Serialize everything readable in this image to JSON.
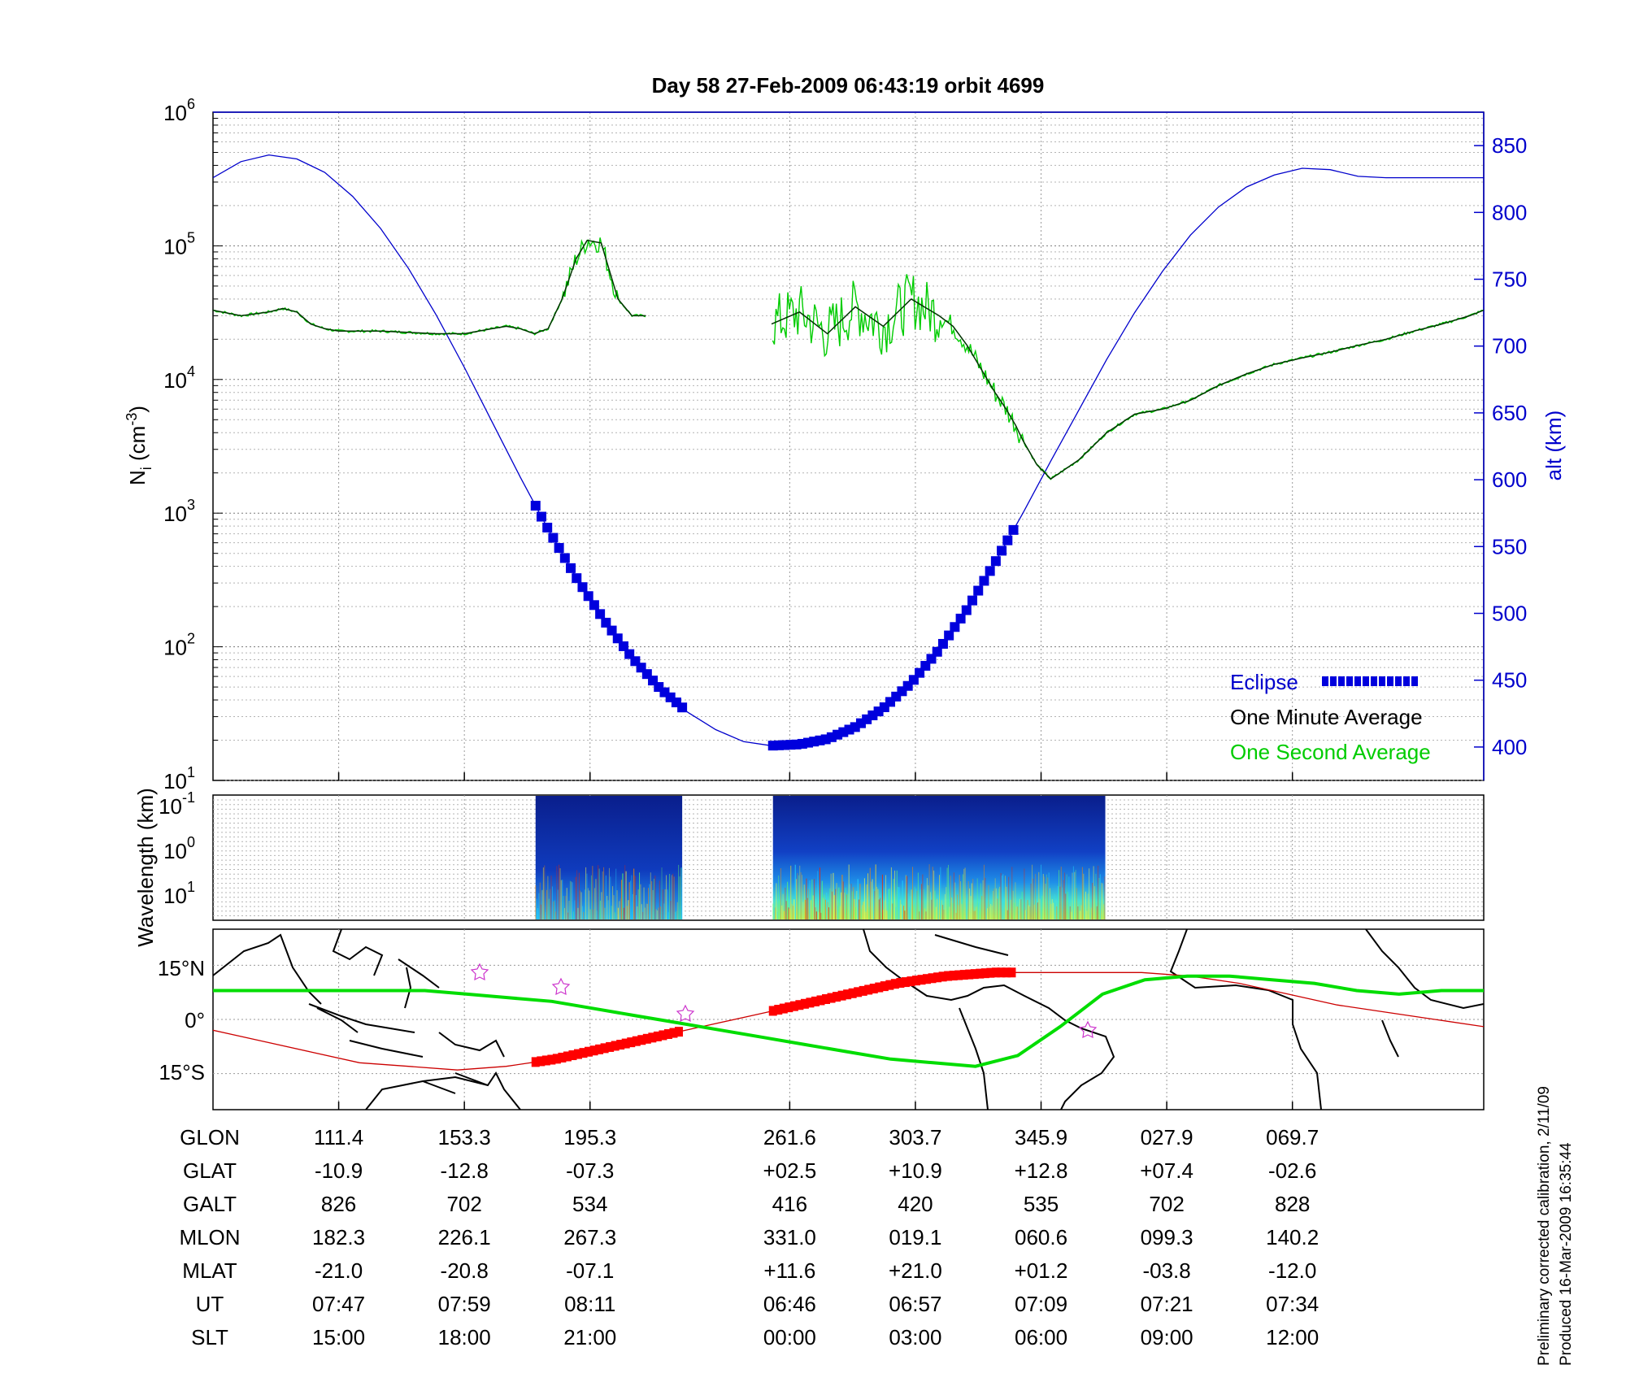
{
  "chart_data": [
    {
      "type": "line",
      "title": "Day 58  27-Feb-2009 06:43:19   orbit 4699",
      "ylabel_left": "N",
      "ylabel_left_sub": "i",
      "ylabel_left_unit": "(cm",
      "ylabel_left_unit_sup": "-3",
      "ylabel_left_unit_close": ")",
      "ylabel_right": "alt (km)",
      "yscale_left": "log",
      "ylim_left": [
        10,
        1000000
      ],
      "yticks_left": [
        {
          "base": "10",
          "exp": "1"
        },
        {
          "base": "10",
          "exp": "2"
        },
        {
          "base": "10",
          "exp": "3"
        },
        {
          "base": "10",
          "exp": "4"
        },
        {
          "base": "10",
          "exp": "5"
        },
        {
          "base": "10",
          "exp": "6"
        }
      ],
      "ylim_right": [
        375,
        875
      ],
      "yticks_right": [
        "400",
        "450",
        "500",
        "550",
        "600",
        "650",
        "700",
        "750",
        "800",
        "850"
      ],
      "grid": true,
      "legend_position": "bottom-right",
      "legend": [
        {
          "label": "Eclipse",
          "color": "#0000cc",
          "style": "thick-dotted"
        },
        {
          "label": "One Minute Average",
          "color": "#000000",
          "style": "line"
        },
        {
          "label": "One Second Average",
          "color": "#00cc00",
          "style": "line"
        }
      ],
      "series": [
        {
          "name": "One Minute Average",
          "color": "#006400",
          "x": [
            0,
            2,
            4,
            5,
            6,
            7,
            8,
            9,
            10,
            12,
            14,
            16,
            18,
            20,
            21,
            22,
            23,
            24,
            25,
            26,
            26.8,
            27.8,
            28.3,
            29,
            30,
            31,
            32,
            33,
            34,
            36,
            38,
            40,
            42,
            44,
            46,
            48,
            50,
            52,
            53,
            54,
            55,
            56,
            56.8,
            57.5,
            58,
            59,
            60,
            62,
            64,
            66,
            68,
            70,
            72,
            74,
            76,
            78,
            80,
            82,
            84,
            86,
            88,
            90,
            91
          ],
          "y": [
            33000,
            30000,
            32000,
            34000,
            32000,
            26000,
            24000,
            23000,
            23000,
            23000,
            22500,
            22000,
            22000,
            24000,
            25000,
            24000,
            22000,
            24000,
            40000,
            80000,
            110000,
            105000,
            70000,
            40000,
            30000,
            30000,
            null,
            null,
            null,
            null,
            null,
            26000,
            32000,
            22000,
            35000,
            25000,
            40000,
            30000,
            25000,
            18000,
            12000,
            8000,
            6000,
            4500,
            3500,
            2300,
            1800,
            2500,
            4000,
            5500,
            6000,
            7000,
            9000,
            11000,
            13000,
            14500,
            16000,
            18000,
            20000,
            23000,
            26000,
            30000,
            33000
          ]
        },
        {
          "name": "Altitude",
          "color": "#0000cc",
          "axis": "right",
          "x": [
            0,
            2,
            4,
            6,
            8,
            10,
            12,
            14,
            16,
            18,
            20,
            22,
            24,
            26,
            28,
            30,
            32,
            34,
            36,
            38,
            40,
            42,
            44,
            46,
            48,
            50,
            52,
            54,
            56,
            58,
            60,
            62,
            64,
            66,
            68,
            70,
            72,
            74,
            76,
            78,
            80,
            82,
            84,
            86,
            88,
            90,
            91
          ],
          "y": [
            826,
            838,
            843,
            840,
            830,
            812,
            788,
            758,
            723,
            684,
            643,
            602,
            563,
            527,
            495,
            467,
            444,
            426,
            413,
            404,
            401,
            402,
            406,
            415,
            429,
            448,
            473,
            503,
            538,
            575,
            614,
            652,
            690,
            725,
            756,
            783,
            804,
            819,
            828,
            833,
            832,
            827,
            826,
            826,
            826,
            826,
            826
          ]
        },
        {
          "name": "Eclipse",
          "color": "#0000cc",
          "axis": "right",
          "segments": [
            [
              23.1,
              33.6
            ],
            [
              40.1,
              57.5
            ]
          ]
        }
      ]
    },
    {
      "type": "heatmap",
      "ylabel": "Wavelength (km)",
      "yticks": [
        {
          "base": "10",
          "exp": "-1"
        },
        {
          "base": "10",
          "exp": "0"
        },
        {
          "base": "10",
          "exp": "1"
        }
      ],
      "colormap": "jet",
      "data_segments": [
        [
          23.1,
          33.6
        ],
        [
          40.1,
          63.9
        ]
      ]
    },
    {
      "type": "map",
      "yticks": [
        "15°N",
        "0°",
        "15°S"
      ],
      "lat_range": [
        -25,
        25
      ],
      "orbit_track_color": "#00dd00",
      "magnetic_equator_color": "#cc0000",
      "eclipse_marker_color": "#ff0000",
      "track_lat": [
        8,
        8,
        8,
        8,
        8,
        8,
        7,
        6,
        5,
        3,
        1,
        -1,
        -3,
        -5,
        -7,
        -9,
        -11,
        -12,
        -13,
        -10,
        -2,
        7,
        11,
        12,
        12,
        11,
        10,
        8,
        7,
        8,
        8
      ],
      "magnetic_equator_lat": [
        -3,
        -6,
        -9,
        -12,
        -13,
        -14,
        -13,
        -11,
        -8,
        -5,
        -2,
        1,
        4,
        7,
        10,
        12,
        13,
        13,
        13,
        13,
        12,
        10,
        7,
        4,
        2,
        0,
        -2
      ]
    }
  ],
  "table": {
    "labels": [
      "GLON",
      "GLAT",
      "GALT",
      "MLON",
      "MLAT",
      "UT",
      "SLT"
    ],
    "columns": [
      [
        "111.4",
        "-10.9",
        "826",
        "182.3",
        "-21.0",
        "07:47",
        "15:00"
      ],
      [
        "153.3",
        "-12.8",
        "702",
        "226.1",
        "-20.8",
        "07:59",
        "18:00"
      ],
      [
        "195.3",
        "-07.3",
        "534",
        "267.3",
        "-07.1",
        "08:11",
        "21:00"
      ],
      [
        "261.6",
        "+02.5",
        "416",
        "331.0",
        "+11.6",
        "06:46",
        "00:00"
      ],
      [
        "303.7",
        "+10.9",
        "420",
        "019.1",
        "+21.0",
        "06:57",
        "03:00"
      ],
      [
        "345.9",
        "+12.8",
        "535",
        "060.6",
        "+01.2",
        "07:09",
        "06:00"
      ],
      [
        "027.9",
        "+07.4",
        "702",
        "099.3",
        "-03.8",
        "07:21",
        "09:00"
      ],
      [
        "069.7",
        "-02.6",
        "828",
        "140.2",
        "-12.0",
        "07:34",
        "12:00"
      ]
    ]
  },
  "footnote": {
    "line1": "Preliminary corrected calibration, 2/11/09",
    "line2": "Produced 16-Mar-2009 16:35:44"
  },
  "colors": {
    "axis": "#000000",
    "grid": "#888888",
    "altitude": "#0000cc",
    "minute_avg": "#000000",
    "second_avg": "#00cc00",
    "eclipse": "#0000cc"
  }
}
